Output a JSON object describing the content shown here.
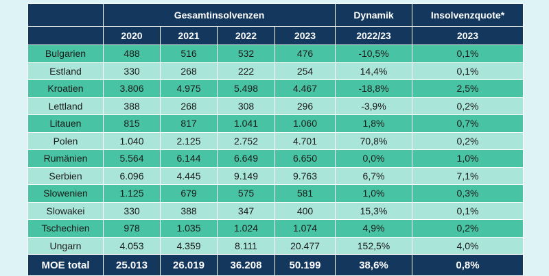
{
  "header": {
    "groups": [
      "Gesamtinsolvenzen",
      "Dynamik",
      "Insolvenzquote*"
    ],
    "columns": [
      "2020",
      "2021",
      "2022",
      "2023",
      "2022/23",
      "2023"
    ]
  },
  "table": {
    "rows": [
      [
        "Bulgarien",
        "488",
        "516",
        "532",
        "476",
        "-10,5%",
        "0,1%"
      ],
      [
        "Estland",
        "330",
        "268",
        "222",
        "254",
        "14,4%",
        "0,1%"
      ],
      [
        "Kroatien",
        "3.806",
        "4.975",
        "5.498",
        "4.467",
        "-18,8%",
        "2,5%"
      ],
      [
        "Lettland",
        "388",
        "268",
        "308",
        "296",
        "-3,9%",
        "0,2%"
      ],
      [
        "Litauen",
        "815",
        "817",
        "1.041",
        "1.060",
        "1,8%",
        "0,7%"
      ],
      [
        "Polen",
        "1.040",
        "2.125",
        "2.752",
        "4.701",
        "70,8%",
        "0,2%"
      ],
      [
        "Rumänien",
        "5.564",
        "6.144",
        "6.649",
        "6.650",
        "0,0%",
        "1,0%"
      ],
      [
        "Serbien",
        "6.096",
        "4.445",
        "9.149",
        "9.763",
        "6,7%",
        "7,1%"
      ],
      [
        "Slowenien",
        "1.125",
        "679",
        "575",
        "581",
        "1,0%",
        "0,3%"
      ],
      [
        "Slowakei",
        "330",
        "388",
        "347",
        "400",
        "15,3%",
        "0,1%"
      ],
      [
        "Tschechien",
        "978",
        "1.035",
        "1.024",
        "1.074",
        "4,9%",
        "0,2%"
      ],
      [
        "Ungarn",
        "4.053",
        "4.359",
        "8.111",
        "20.477",
        "152,5%",
        "4,0%"
      ]
    ],
    "total": [
      "MOE total",
      "25.013",
      "26.019",
      "36.208",
      "50.199",
      "38,6%",
      "0,8%"
    ]
  }
}
